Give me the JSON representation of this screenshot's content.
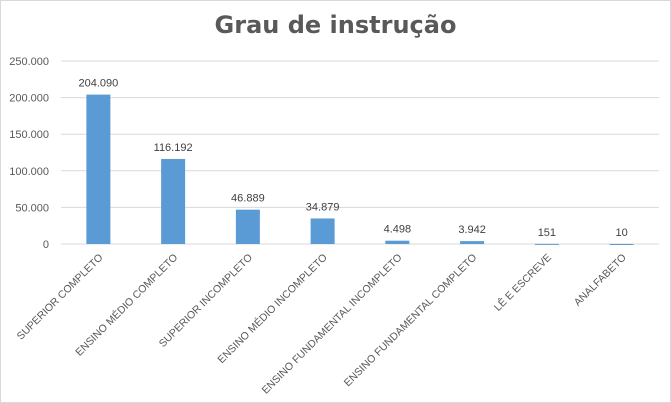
{
  "chart_data": {
    "type": "bar",
    "title": "Grau de instrução",
    "xlabel": "",
    "ylabel": "",
    "ylim": [
      0,
      250000
    ],
    "yticks": [
      0,
      50000,
      100000,
      150000,
      200000,
      250000
    ],
    "ytick_labels": [
      "0",
      "50.000",
      "100.000",
      "150.000",
      "200.000",
      "250.000"
    ],
    "grid": true,
    "categories": [
      "SUPERIOR COMPLETO",
      "ENSINO MÉDIO COMPLETO",
      "SUPERIOR INCOMPLETO",
      "ENSINO MÉDIO INCOMPLETO",
      "ENSINO FUNDAMENTAL INCOMPLETO",
      "ENSINO FUNDAMENTAL COMPLETO",
      "LÊ E ESCREVE",
      "ANALFABETO"
    ],
    "values": [
      204090,
      116192,
      46889,
      34879,
      4498,
      3942,
      151,
      10
    ],
    "data_labels": [
      "204.090",
      "116.192",
      "46.889",
      "34.879",
      "4.498",
      "3.942",
      "151",
      "10"
    ],
    "bar_color": "#5b9bd5",
    "grid_color": "#d9d9d9"
  }
}
